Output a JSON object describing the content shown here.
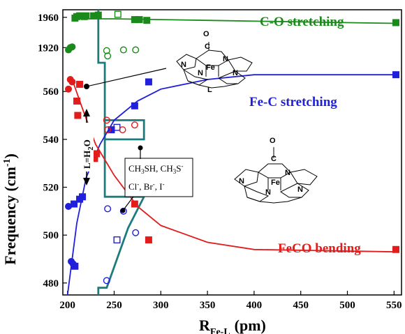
{
  "chart_data": {
    "type": "scatter",
    "xlabel": "R",
    "xlabel_sub": "Fe-L",
    "xlabel_unit": "(pm)",
    "ylabel": "Frequency (cm",
    "ylabel_sup": "-1",
    "ylabel_close": ")",
    "x_ticks": [
      "200",
      "250",
      "300",
      "350",
      "400",
      "450",
      "500",
      "550"
    ],
    "xlim": [
      195,
      558
    ],
    "top_panel": {
      "ylim": [
        1900,
        1970
      ],
      "y_ticks": [
        "1920",
        "1960"
      ],
      "series": [
        {
          "name": "C-O stretching",
          "color": "#1a8a1a",
          "filled_squares": [
            [
              208,
              1959
            ],
            [
              210,
              1961
            ],
            [
              213,
              1962
            ],
            [
              218,
              1961
            ],
            [
              220,
              1962
            ],
            [
              228,
              1962
            ],
            [
              233,
              1963
            ],
            [
              272,
              1957
            ],
            [
              277,
              1957
            ],
            [
              285,
              1956
            ],
            [
              552,
              1953
            ]
          ],
          "open_squares": [
            [
              254,
              1964
            ]
          ],
          "filled_circles": [
            [
              201,
              1917
            ],
            [
              203,
              1920
            ],
            [
              205,
              1921
            ]
          ],
          "open_circles": [
            [
              242,
              1916
            ],
            [
              243,
              1909
            ],
            [
              260,
              1917
            ],
            [
              273,
              1917
            ]
          ],
          "curve": [
            [
              205,
              1958
            ],
            [
              250,
              1958
            ],
            [
              350,
              1956
            ],
            [
              450,
              1954
            ],
            [
              552,
              1952
            ]
          ]
        }
      ]
    },
    "bottom_panel": {
      "ylim": [
        475,
        572
      ],
      "y_ticks": [
        "480",
        "500",
        "520",
        "540",
        "560"
      ],
      "series": [
        {
          "name": "Fe-C stretching",
          "color": "#1f1fdc",
          "filled_squares": [
            [
              208,
              487
            ],
            [
              207,
              513
            ],
            [
              213,
              515
            ],
            [
              216,
              516
            ],
            [
              222,
              529
            ],
            [
              229,
              533
            ],
            [
              247,
              544
            ],
            [
              272,
              554
            ],
            [
              287,
              564
            ],
            [
              552,
              567
            ]
          ],
          "open_squares": [
            [
              253,
              545
            ],
            [
              253,
              498
            ]
          ],
          "filled_circles": [
            [
              201,
              512
            ],
            [
              204,
              489
            ],
            [
              206,
              488
            ]
          ],
          "open_circles": [
            [
              242,
              481
            ],
            [
              243,
              511
            ],
            [
              260,
              510
            ],
            [
              273,
              501
            ]
          ],
          "curve": [
            [
              200,
              475
            ],
            [
              210,
              505
            ],
            [
              220,
              524
            ],
            [
              235,
              538
            ],
            [
              250,
              548
            ],
            [
              275,
              556
            ],
            [
              300,
              561
            ],
            [
              350,
              565
            ],
            [
              400,
              567
            ],
            [
              552,
              567
            ]
          ]
        },
        {
          "name": "FeCO bending",
          "color": "#e21b1b",
          "filled_squares": [
            [
              210,
              556
            ],
            [
              213,
              563
            ],
            [
              211,
              550
            ],
            [
              222,
              536
            ],
            [
              229,
              532
            ],
            [
              231,
              534
            ],
            [
              272,
              513
            ],
            [
              287,
              498
            ],
            [
              552,
              494
            ]
          ],
          "open_squares": [],
          "filled_circles": [
            [
              201,
              561
            ],
            [
              203,
              565
            ],
            [
              205,
              564
            ]
          ],
          "open_circles": [
            [
              242,
              548
            ],
            [
              243,
              544
            ],
            [
              259,
              544
            ],
            [
              272,
              546
            ]
          ],
          "curve": [
            [
              205,
              565
            ],
            [
              215,
              554
            ],
            [
              230,
              538
            ],
            [
              250,
              525
            ],
            [
              275,
              512
            ],
            [
              300,
              504
            ],
            [
              350,
              497
            ],
            [
              400,
              494
            ],
            [
              552,
              493
            ]
          ]
        }
      ]
    },
    "annotations": {
      "ligand_label": "L=H",
      "ligand_sub": "2",
      "ligand_tail": "O",
      "thiolate_line1": "CH",
      "thiolate_line1_sub": "3",
      "thiolate_line1_mid": "SH, CH",
      "thiolate_line1_sub2": "3",
      "thiolate_line1_end": "S",
      "thiolate_line1_sup": "-",
      "halide_line": "Cl",
      "halide_sup": "-",
      "halide_mid1": ", Br",
      "halide_sup2": "-",
      "halide_mid2": ", I",
      "halide_sup3": "-",
      "struct_top": {
        "atoms": [
          "O",
          "C",
          "N",
          "N",
          "Fe",
          "N",
          "N",
          "L"
        ]
      },
      "struct_bottom": {
        "atoms": [
          "O",
          "C",
          "N",
          "N",
          "Fe",
          "N",
          "N"
        ]
      }
    },
    "grid": false,
    "legend": "inline-labels"
  }
}
